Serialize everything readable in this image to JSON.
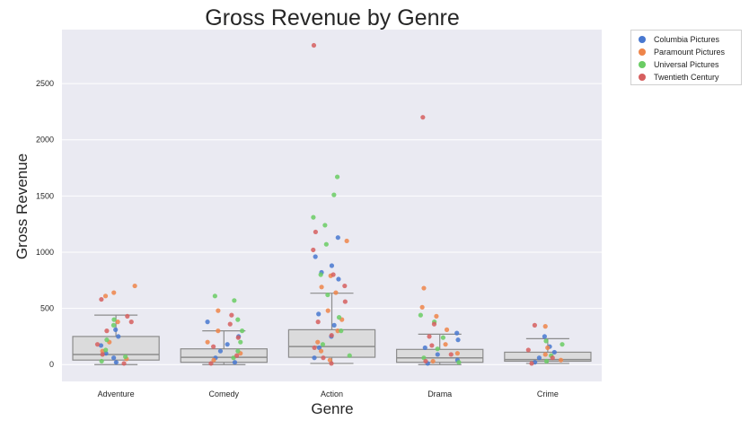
{
  "chart_data": {
    "type": "boxplot-stripplot",
    "title": "Gross Revenue by Genre",
    "xlabel": "Genre",
    "ylabel": "Gross Revenue",
    "ylim": [
      -150,
      2980
    ],
    "yticks": [
      0,
      500,
      1000,
      1500,
      2000,
      2500
    ],
    "grid": true,
    "legend_position": "outside-top-right",
    "categories": [
      "Adventure",
      "Comedy",
      "Action",
      "Drama",
      "Crime"
    ],
    "boxes": [
      {
        "category": "Adventure",
        "whisker_low": 0,
        "q1": 40,
        "median": 90,
        "q3": 250,
        "whisker_high": 440
      },
      {
        "category": "Comedy",
        "whisker_low": 0,
        "q1": 20,
        "median": 65,
        "q3": 140,
        "whisker_high": 300
      },
      {
        "category": "Action",
        "whisker_low": 10,
        "q1": 65,
        "median": 160,
        "q3": 310,
        "whisker_high": 635
      },
      {
        "category": "Drama",
        "whisker_low": 0,
        "q1": 20,
        "median": 60,
        "q3": 135,
        "whisker_high": 270
      },
      {
        "category": "Crime",
        "whisker_low": 10,
        "q1": 30,
        "median": 45,
        "q3": 110,
        "whisker_high": 230
      }
    ],
    "series": [
      {
        "name": "Columbia Pictures",
        "color": "#4878d0",
        "points": {
          "Adventure": [
            310,
            250,
            170,
            100,
            60,
            20
          ],
          "Comedy": [
            380,
            250,
            180,
            120,
            60,
            20
          ],
          "Action": [
            1130,
            960,
            880,
            820,
            760,
            450,
            350,
            250,
            150,
            60
          ],
          "Drama": [
            280,
            220,
            150,
            90,
            40,
            10
          ],
          "Crime": [
            250,
            160,
            110,
            60,
            20
          ]
        }
      },
      {
        "name": "Paramount Pictures",
        "color": "#ee854a",
        "points": {
          "Adventure": [
            700,
            640,
            610,
            380,
            200,
            120,
            50
          ],
          "Comedy": [
            480,
            300,
            200,
            100,
            40
          ],
          "Action": [
            1100,
            790,
            690,
            640,
            480,
            400,
            300,
            200,
            120,
            40
          ],
          "Drama": [
            680,
            510,
            430,
            310,
            180,
            100,
            30
          ],
          "Crime": [
            340,
            150,
            90,
            40
          ]
        }
      },
      {
        "name": "Universal Pictures",
        "color": "#6acc64",
        "points": {
          "Adventure": [
            400,
            350,
            220,
            130,
            70,
            30
          ],
          "Comedy": [
            610,
            570,
            400,
            300,
            200,
            120,
            60
          ],
          "Action": [
            1670,
            1510,
            1310,
            1240,
            1070,
            800,
            620,
            420,
            300,
            180,
            80
          ],
          "Drama": [
            440,
            380,
            240,
            140,
            60,
            20
          ],
          "Crime": [
            210,
            180,
            80,
            30
          ]
        }
      },
      {
        "name": "Twentieth Century",
        "color": "#d65f5f",
        "points": {
          "Adventure": [
            580,
            430,
            380,
            300,
            180,
            90,
            10
          ],
          "Comedy": [
            440,
            360,
            240,
            160,
            80,
            10
          ],
          "Action": [
            2840,
            1180,
            1020,
            800,
            700,
            560,
            380,
            260,
            150,
            60,
            10
          ],
          "Drama": [
            2200,
            360,
            250,
            170,
            90,
            30
          ],
          "Crime": [
            350,
            130,
            60,
            10
          ]
        }
      }
    ]
  }
}
